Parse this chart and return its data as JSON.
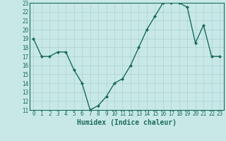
{
  "x": [
    0,
    1,
    2,
    3,
    4,
    5,
    6,
    7,
    8,
    9,
    10,
    11,
    12,
    13,
    14,
    15,
    16,
    17,
    18,
    19,
    20,
    21,
    22,
    23
  ],
  "y": [
    19,
    17,
    17,
    17.5,
    17.5,
    15.5,
    14,
    11,
    11.5,
    12.5,
    14,
    14.5,
    16,
    18,
    20,
    21.5,
    23,
    23,
    23,
    22.5,
    18.5,
    20.5,
    17,
    17
  ],
  "line_color": "#1a6b5a",
  "marker": "D",
  "marker_size": 2,
  "bg_color": "#c8e8e8",
  "grid_color": "#aad0d0",
  "xlabel": "Humidex (Indice chaleur)",
  "xlim": [
    -0.5,
    23.5
  ],
  "ylim": [
    11,
    23
  ],
  "xticks": [
    0,
    1,
    2,
    3,
    4,
    5,
    6,
    7,
    8,
    9,
    10,
    11,
    12,
    13,
    14,
    15,
    16,
    17,
    18,
    19,
    20,
    21,
    22,
    23
  ],
  "yticks": [
    11,
    12,
    13,
    14,
    15,
    16,
    17,
    18,
    19,
    20,
    21,
    22,
    23
  ],
  "tick_fontsize": 5.5,
  "xlabel_fontsize": 7,
  "line_width": 1.0
}
